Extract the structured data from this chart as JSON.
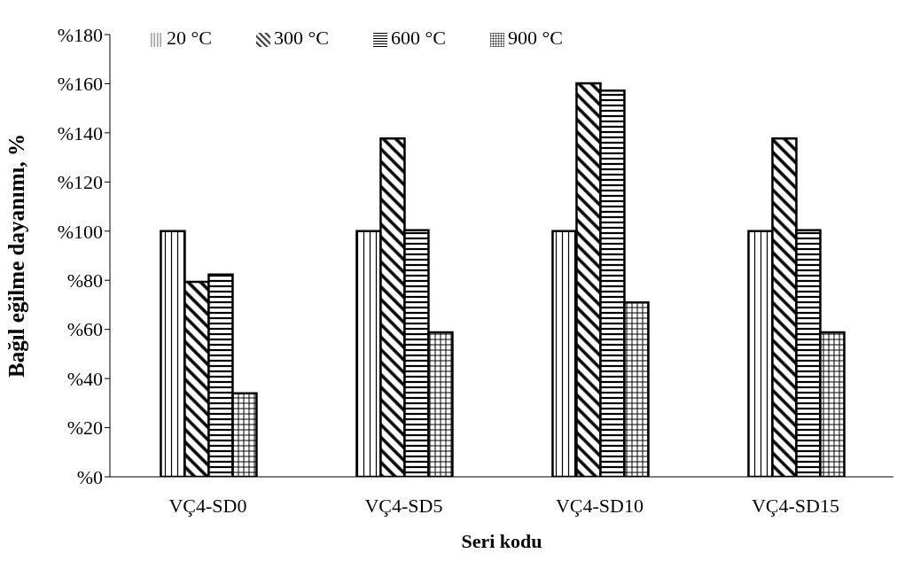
{
  "chart_data": {
    "type": "bar",
    "xlabel": "Seri kodu",
    "ylabel": "Bağıl eğilme dayanımı, %",
    "categories": [
      "VÇ4-SD0",
      "VÇ4-SD5",
      "VÇ4-SD10",
      "VÇ4-SD15"
    ],
    "series": [
      {
        "name": "20 °C",
        "color": "#000000",
        "values": [
          100,
          100,
          100,
          100
        ]
      },
      {
        "name": "300 °C",
        "color": "#000000",
        "values": [
          79.4,
          137.7,
          160.2,
          137.7
        ]
      },
      {
        "name": "600 °C",
        "color": "#000000",
        "values": [
          82.3,
          100.4,
          157.2,
          100.4
        ]
      },
      {
        "name": "900 °C",
        "color": "#000000",
        "values": [
          34,
          58.8,
          71,
          58.8
        ]
      }
    ],
    "ylim": [
      0,
      180
    ],
    "yticks": [
      {
        "value": 0,
        "label": "%0"
      },
      {
        "value": 20,
        "label": "%20"
      },
      {
        "value": 40,
        "label": "%40"
      },
      {
        "value": 60,
        "label": "%60"
      },
      {
        "value": 80,
        "label": "%80"
      },
      {
        "value": 100,
        "label": "%100"
      },
      {
        "value": 120,
        "label": "%120"
      },
      {
        "value": 140,
        "label": "%140"
      },
      {
        "value": 160,
        "label": "%160"
      },
      {
        "value": 180,
        "label": "%180"
      }
    ],
    "grid": false,
    "legend": "top left"
  }
}
